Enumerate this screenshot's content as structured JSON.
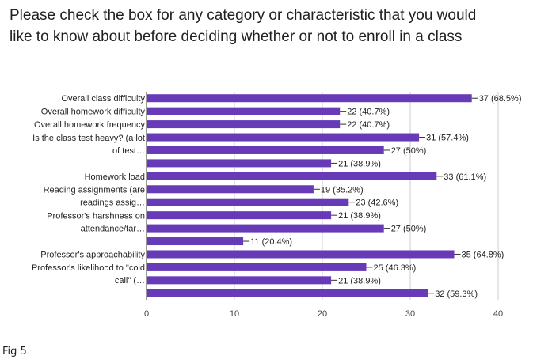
{
  "title_lines": [
    "Please check the box for any category or characteristic that you would",
    "like to know about before deciding whether or not to enroll in a class"
  ],
  "caption": "Fig 5",
  "chart_data": {
    "type": "bar",
    "orientation": "horizontal",
    "title": "Please check the box for any category or characteristic that you would like to know about before deciding whether or not to enroll in a class",
    "category_label_groups": [
      {
        "lines": [
          "Overall class difficulty"
        ],
        "bars": [
          0
        ]
      },
      {
        "lines": [
          "Overall homework difficulty"
        ],
        "bars": [
          1
        ]
      },
      {
        "lines": [
          "Overall homework frequency"
        ],
        "bars": [
          2
        ]
      },
      {
        "lines": [
          "Is the class test heavy? (a lot",
          "of test…"
        ],
        "bars": [
          3,
          4
        ]
      },
      {
        "lines": [],
        "bars": [
          5
        ]
      },
      {
        "lines": [
          "Homework load"
        ],
        "bars": [
          6
        ]
      },
      {
        "lines": [
          "Reading assignments (are",
          "readings assig…"
        ],
        "bars": [
          7,
          8
        ]
      },
      {
        "lines": [
          "Professor's harshness on",
          "attendance/tar…"
        ],
        "bars": [
          9,
          10
        ]
      },
      {
        "lines": [],
        "bars": [
          11
        ]
      },
      {
        "lines": [
          "Professor's approachability"
        ],
        "bars": [
          12
        ]
      },
      {
        "lines": [
          "Professor's likelihood to \"cold",
          "call\" (…"
        ],
        "bars": [
          13,
          14
        ]
      },
      {
        "lines": [],
        "bars": [
          15
        ]
      }
    ],
    "values": [
      37,
      22,
      22,
      31,
      27,
      21,
      33,
      19,
      23,
      21,
      27,
      11,
      35,
      25,
      21,
      32
    ],
    "data_labels": [
      "37 (68.5%)",
      "22 (40.7%)",
      "22 (40.7%)",
      "31 (57.4%)",
      "27 (50%)",
      "21 (38.9%)",
      "33 (61.1%)",
      "19 (35.2%)",
      "23 (42.6%)",
      "21 (38.9%)",
      "27 (50%)",
      "11 (20.4%)",
      "35 (64.8%)",
      "25 (46.3%)",
      "21 (38.9%)",
      "32 (59.3%)"
    ],
    "x_ticks": [
      0,
      10,
      20,
      30,
      40
    ],
    "xlim": [
      0,
      40
    ],
    "xlabel": "",
    "ylabel": "",
    "bar_color": "#673ab7",
    "grid": true
  }
}
